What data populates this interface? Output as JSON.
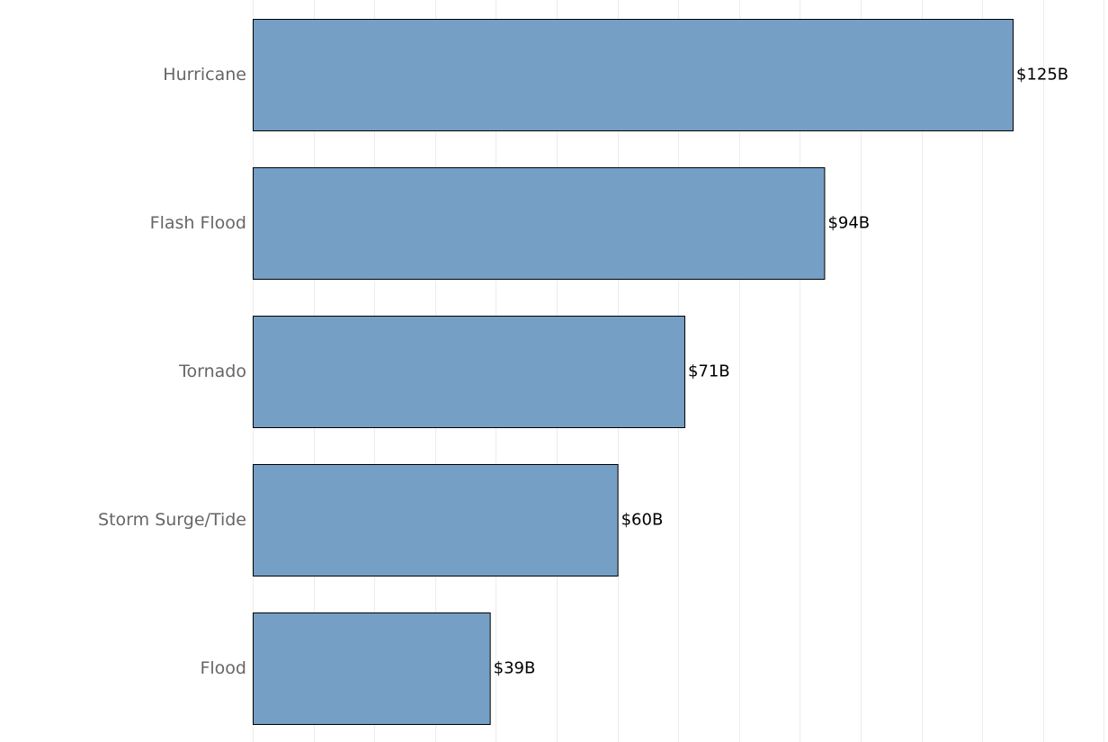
{
  "chart_data": {
    "type": "bar",
    "orientation": "horizontal",
    "categories": [
      "Hurricane",
      "Flash Flood",
      "Tornado",
      "Storm Surge/Tide",
      "Flood"
    ],
    "values": [
      125,
      94,
      71,
      60,
      39
    ],
    "data_labels": [
      "$125B",
      "$94B",
      "$71B",
      "$60B",
      "$39B"
    ],
    "title": "",
    "xlabel": "",
    "ylabel": "",
    "xlim": [
      0,
      140
    ],
    "grid": true,
    "legend": "none",
    "colors": {
      "bar": "#759fc5",
      "bar_border": "#000000",
      "category_text": "#666666",
      "value_text": "#000000",
      "grid": "#ececec"
    }
  }
}
